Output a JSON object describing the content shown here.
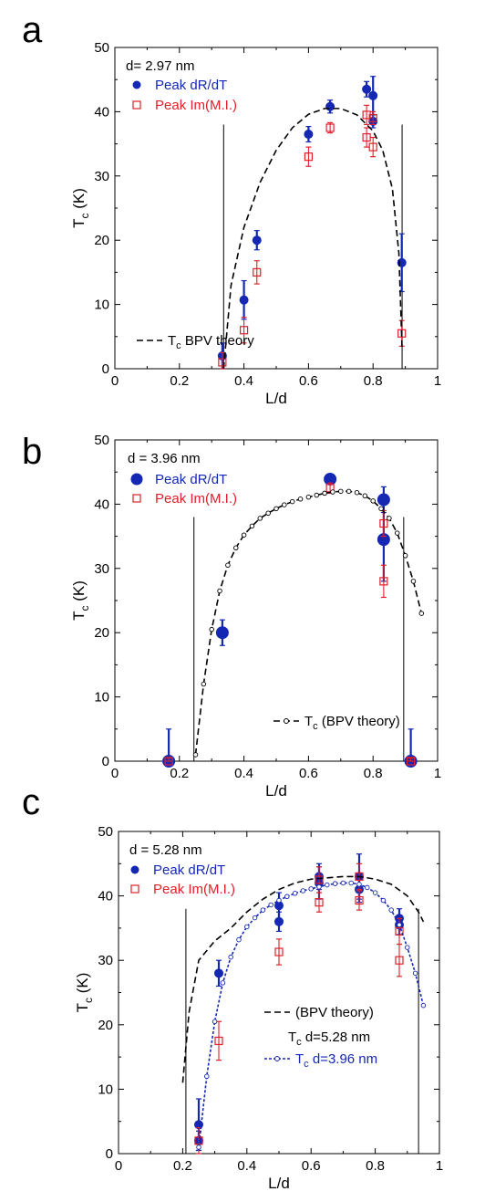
{
  "chart_data": [
    {
      "type": "scatter",
      "panel_label": "a",
      "annotation": "d= 2.97 nm",
      "xlabel": "L/d",
      "ylabel": "T_c (K)",
      "xlim": [
        0,
        1
      ],
      "ylim": [
        0,
        50
      ],
      "xticks": [
        "0",
        "0.2",
        "0.4",
        "0.6",
        "0.8",
        "1"
      ],
      "yticks": [
        "0",
        "10",
        "20",
        "30",
        "40",
        "50"
      ],
      "legend_position": "top-left",
      "vlines": [
        0.337,
        0.89
      ],
      "series": [
        {
          "name": "Peak dR/dT",
          "kind": "marker-filled-circle",
          "color": "#1428b4",
          "points": [
            {
              "x": 0.333,
              "y": 2.0,
              "err": 2.0
            },
            {
              "x": 0.4,
              "y": 10.7,
              "err": 3.0
            },
            {
              "x": 0.44,
              "y": 20.0,
              "err": 1.5
            },
            {
              "x": 0.6,
              "y": 36.5,
              "err": 1.2
            },
            {
              "x": 0.667,
              "y": 40.8,
              "err": 1.0
            },
            {
              "x": 0.78,
              "y": 43.5,
              "err": 1.2
            },
            {
              "x": 0.8,
              "y": 42.5,
              "err": 3.0
            },
            {
              "x": 0.8,
              "y": 38.5,
              "err": 1.0
            },
            {
              "x": 0.889,
              "y": 16.5,
              "err": 4.5
            }
          ]
        },
        {
          "name": "Peak Im(M.I.)",
          "kind": "marker-open-square",
          "color": "#e0202a",
          "points": [
            {
              "x": 0.333,
              "y": 1.0,
              "err": 1.5
            },
            {
              "x": 0.4,
              "y": 6.0,
              "err": 2.0
            },
            {
              "x": 0.44,
              "y": 15.0,
              "err": 1.8
            },
            {
              "x": 0.6,
              "y": 33.0,
              "err": 1.5
            },
            {
              "x": 0.667,
              "y": 37.5,
              "err": 0.8
            },
            {
              "x": 0.78,
              "y": 39.5,
              "err": 1.5
            },
            {
              "x": 0.78,
              "y": 36.0,
              "err": 1.5
            },
            {
              "x": 0.8,
              "y": 39.0,
              "err": 1.0
            },
            {
              "x": 0.8,
              "y": 34.5,
              "err": 1.5
            },
            {
              "x": 0.889,
              "y": 5.5,
              "err": 2.0
            }
          ]
        },
        {
          "name": "BPV theory",
          "name_sub": "c",
          "name_prefix": "T",
          "kind": "line-dashed",
          "color": "#000000",
          "points": [
            {
              "x": 0.337,
              "y": 0
            },
            {
              "x": 0.36,
              "y": 13
            },
            {
              "x": 0.4,
              "y": 22
            },
            {
              "x": 0.45,
              "y": 29
            },
            {
              "x": 0.5,
              "y": 34
            },
            {
              "x": 0.55,
              "y": 37.5
            },
            {
              "x": 0.6,
              "y": 39.6
            },
            {
              "x": 0.65,
              "y": 40.5
            },
            {
              "x": 0.7,
              "y": 40.5
            },
            {
              "x": 0.75,
              "y": 39.5
            },
            {
              "x": 0.8,
              "y": 37
            },
            {
              "x": 0.83,
              "y": 34
            },
            {
              "x": 0.86,
              "y": 28
            },
            {
              "x": 0.88,
              "y": 18
            },
            {
              "x": 0.89,
              "y": 3
            }
          ]
        }
      ]
    },
    {
      "type": "scatter",
      "panel_label": "b",
      "annotation": "d = 3.96 nm",
      "xlabel": "L/d",
      "ylabel": "T_c (K)",
      "xlim": [
        0,
        1
      ],
      "ylim": [
        0,
        50
      ],
      "xticks": [
        "0",
        "0.2",
        "0.4",
        "0.6",
        "0.8",
        "1"
      ],
      "yticks": [
        "0",
        "10",
        "20",
        "30",
        "40",
        "50"
      ],
      "legend_position": "top-left",
      "vlines": [
        0.245,
        0.895
      ],
      "series": [
        {
          "name": "Peak dR/dT",
          "kind": "marker-filled-circle-large",
          "color": "#1428b4",
          "points": [
            {
              "x": 0.167,
              "y": 0.0,
              "err": 5.0
            },
            {
              "x": 0.333,
              "y": 20.0,
              "err": 2.0
            },
            {
              "x": 0.667,
              "y": 43.9,
              "err": 0.5
            },
            {
              "x": 0.833,
              "y": 40.7,
              "err": 2.0
            },
            {
              "x": 0.833,
              "y": 34.5,
              "err": 6.5
            },
            {
              "x": 0.917,
              "y": 0.0,
              "err": 5.0
            }
          ]
        },
        {
          "name": "Peak Im(M.I.)",
          "kind": "marker-open-square",
          "color": "#e0202a",
          "points": [
            {
              "x": 0.167,
              "y": 0.0,
              "err": 0.5
            },
            {
              "x": 0.667,
              "y": 42.5,
              "err": 0.8
            },
            {
              "x": 0.833,
              "y": 37.0,
              "err": 2.0
            },
            {
              "x": 0.833,
              "y": 28.0,
              "err": 2.5
            },
            {
              "x": 0.917,
              "y": 0.0,
              "err": 0.5
            }
          ]
        },
        {
          "name": "(BPV theory)",
          "name_sub": "c",
          "name_prefix": "T",
          "kind": "line-dashed-open-circles",
          "color": "#000000",
          "points": [
            {
              "x": 0.25,
              "y": 1.0
            },
            {
              "x": 0.275,
              "y": 12.0
            },
            {
              "x": 0.3,
              "y": 20.5
            },
            {
              "x": 0.325,
              "y": 26.5
            },
            {
              "x": 0.35,
              "y": 30.5
            },
            {
              "x": 0.375,
              "y": 33.2
            },
            {
              "x": 0.4,
              "y": 35.2
            },
            {
              "x": 0.425,
              "y": 36.6
            },
            {
              "x": 0.45,
              "y": 37.8
            },
            {
              "x": 0.475,
              "y": 38.6
            },
            {
              "x": 0.5,
              "y": 39.3
            },
            {
              "x": 0.525,
              "y": 39.9
            },
            {
              "x": 0.55,
              "y": 40.4
            },
            {
              "x": 0.575,
              "y": 40.8
            },
            {
              "x": 0.6,
              "y": 41.1
            },
            {
              "x": 0.625,
              "y": 41.4
            },
            {
              "x": 0.65,
              "y": 41.7
            },
            {
              "x": 0.675,
              "y": 41.9
            },
            {
              "x": 0.7,
              "y": 42.0
            },
            {
              "x": 0.725,
              "y": 42.0
            },
            {
              "x": 0.75,
              "y": 41.8
            },
            {
              "x": 0.775,
              "y": 41.3
            },
            {
              "x": 0.8,
              "y": 40.5
            },
            {
              "x": 0.825,
              "y": 39.3
            },
            {
              "x": 0.85,
              "y": 37.8
            },
            {
              "x": 0.875,
              "y": 35.5
            },
            {
              "x": 0.9,
              "y": 32.0
            },
            {
              "x": 0.925,
              "y": 28.0
            },
            {
              "x": 0.95,
              "y": 23.0
            }
          ]
        }
      ]
    },
    {
      "type": "scatter",
      "panel_label": "c",
      "annotation": "d = 5.28 nm",
      "xlabel": "L/d",
      "ylabel": "T_c (K)",
      "xlim": [
        0,
        1
      ],
      "ylim": [
        0,
        50
      ],
      "xticks": [
        "0",
        "0.2",
        "0.4",
        "0.6",
        "0.8",
        "1"
      ],
      "yticks": [
        "0",
        "10",
        "20",
        "30",
        "40",
        "50"
      ],
      "legend_position": "top-left",
      "vlines": [
        0.21,
        0.935
      ],
      "series": [
        {
          "name": "Peak dR/dT",
          "kind": "marker-filled-circle",
          "color": "#1428b4",
          "points": [
            {
              "x": 0.25,
              "y": 4.5,
              "err": 4.0
            },
            {
              "x": 0.25,
              "y": 2.0,
              "err": 1.5
            },
            {
              "x": 0.3125,
              "y": 28.0,
              "err": 2.0
            },
            {
              "x": 0.5,
              "y": 36.0,
              "err": 1.5
            },
            {
              "x": 0.5,
              "y": 38.5,
              "err": 2.0
            },
            {
              "x": 0.625,
              "y": 43.0,
              "err": 2.0
            },
            {
              "x": 0.625,
              "y": 42.0,
              "err": 2.5
            },
            {
              "x": 0.75,
              "y": 43.0,
              "err": 3.5
            },
            {
              "x": 0.75,
              "y": 41.0,
              "err": 2.0
            },
            {
              "x": 0.875,
              "y": 36.5,
              "err": 1.5
            },
            {
              "x": 0.875,
              "y": 35.5,
              "err": 1.5
            }
          ]
        },
        {
          "name": "Peak Im(M.I.)",
          "kind": "marker-open-square",
          "color": "#e0202a",
          "points": [
            {
              "x": 0.25,
              "y": 2.0,
              "err": 2.0
            },
            {
              "x": 0.3125,
              "y": 17.5,
              "err": 3.0
            },
            {
              "x": 0.5,
              "y": 31.3,
              "err": 2.0
            },
            {
              "x": 0.625,
              "y": 39.0,
              "err": 1.5
            },
            {
              "x": 0.625,
              "y": 42.5,
              "err": 2.0
            },
            {
              "x": 0.75,
              "y": 39.3,
              "err": 1.5
            },
            {
              "x": 0.75,
              "y": 43.0,
              "err": 2.0
            },
            {
              "x": 0.875,
              "y": 34.5,
              "err": 2.0
            },
            {
              "x": 0.875,
              "y": 30.0,
              "err": 2.5
            }
          ]
        },
        {
          "name": "(BPV theory)",
          "kind": "line-dashed",
          "color": "#000000",
          "points": [
            {
              "x": 0.2,
              "y": 11.0
            },
            {
              "x": 0.22,
              "y": 22.0
            },
            {
              "x": 0.25,
              "y": 30.0
            },
            {
              "x": 0.3,
              "y": 33.0
            },
            {
              "x": 0.35,
              "y": 35.0
            },
            {
              "x": 0.4,
              "y": 37.5
            },
            {
              "x": 0.45,
              "y": 39.5
            },
            {
              "x": 0.5,
              "y": 41.0
            },
            {
              "x": 0.55,
              "y": 42.0
            },
            {
              "x": 0.6,
              "y": 42.6
            },
            {
              "x": 0.65,
              "y": 42.8
            },
            {
              "x": 0.7,
              "y": 43.0
            },
            {
              "x": 0.75,
              "y": 43.0
            },
            {
              "x": 0.8,
              "y": 42.6
            },
            {
              "x": 0.85,
              "y": 41.8
            },
            {
              "x": 0.9,
              "y": 40.0
            },
            {
              "x": 0.935,
              "y": 37.5
            },
            {
              "x": 0.95,
              "y": 36.0
            }
          ]
        },
        {
          "name": "d=3.96 nm",
          "name_sub": "c",
          "name_prefix": "T",
          "kind": "line-dotted-open-circles",
          "color": "#1428b4",
          "points": [
            {
              "x": 0.25,
              "y": 1.0
            },
            {
              "x": 0.275,
              "y": 12.0
            },
            {
              "x": 0.3,
              "y": 20.5
            },
            {
              "x": 0.325,
              "y": 26.5
            },
            {
              "x": 0.35,
              "y": 30.5
            },
            {
              "x": 0.375,
              "y": 33.2
            },
            {
              "x": 0.4,
              "y": 35.2
            },
            {
              "x": 0.425,
              "y": 36.6
            },
            {
              "x": 0.45,
              "y": 37.8
            },
            {
              "x": 0.475,
              "y": 38.6
            },
            {
              "x": 0.5,
              "y": 39.3
            },
            {
              "x": 0.525,
              "y": 39.9
            },
            {
              "x": 0.55,
              "y": 40.4
            },
            {
              "x": 0.575,
              "y": 40.8
            },
            {
              "x": 0.6,
              "y": 41.1
            },
            {
              "x": 0.625,
              "y": 41.4
            },
            {
              "x": 0.65,
              "y": 41.7
            },
            {
              "x": 0.675,
              "y": 41.9
            },
            {
              "x": 0.7,
              "y": 42.0
            },
            {
              "x": 0.725,
              "y": 42.0
            },
            {
              "x": 0.75,
              "y": 41.8
            },
            {
              "x": 0.775,
              "y": 41.3
            },
            {
              "x": 0.8,
              "y": 40.5
            },
            {
              "x": 0.825,
              "y": 39.3
            },
            {
              "x": 0.85,
              "y": 37.8
            },
            {
              "x": 0.875,
              "y": 35.5
            },
            {
              "x": 0.9,
              "y": 32.0
            },
            {
              "x": 0.925,
              "y": 28.0
            },
            {
              "x": 0.95,
              "y": 23.0
            }
          ]
        }
      ],
      "extra_legend_text": "T_c d=5.28 nm"
    }
  ]
}
